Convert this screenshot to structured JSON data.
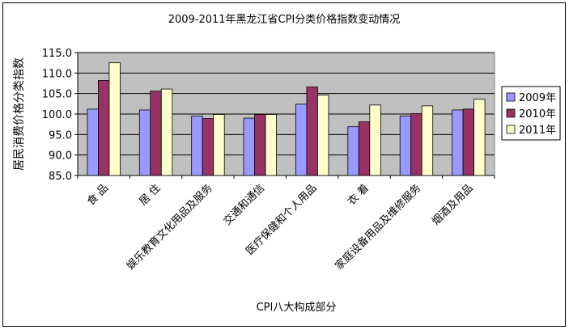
{
  "chart_data": {
    "type": "bar",
    "title": "2009-2011年黑龙江省CPI分类价格指数变动情况",
    "xlabel": "CPI八大构成部分",
    "ylabel": "居民消费价格分类指数",
    "ylim": [
      85.0,
      115.0
    ],
    "yticks": [
      "85.0",
      "90.0",
      "95.0",
      "100.0",
      "105.0",
      "110.0",
      "115.0"
    ],
    "ytick_values": [
      85,
      90,
      95,
      100,
      105,
      110,
      115
    ],
    "grid": true,
    "legend_position": "right",
    "categories": [
      "食  品",
      "居  住",
      "娱乐教育文化用品及服务",
      "交通和通信",
      "医疗保健和个人用品",
      "衣  着",
      "家庭设备用品及维修服务",
      "烟酒及用品"
    ],
    "series": [
      {
        "name": "2009年",
        "color": "#9999ff",
        "values": [
          101.2,
          101.0,
          99.5,
          99.0,
          102.4,
          96.9,
          99.5,
          101.0
        ]
      },
      {
        "name": "2010年",
        "color": "#993366",
        "values": [
          108.2,
          105.6,
          98.9,
          99.9,
          106.6,
          98.1,
          100.1,
          101.2
        ]
      },
      {
        "name": "2011年",
        "color": "#ffffcc",
        "values": [
          112.5,
          106.1,
          99.9,
          99.9,
          104.6,
          102.2,
          102.0,
          103.6
        ]
      }
    ]
  }
}
